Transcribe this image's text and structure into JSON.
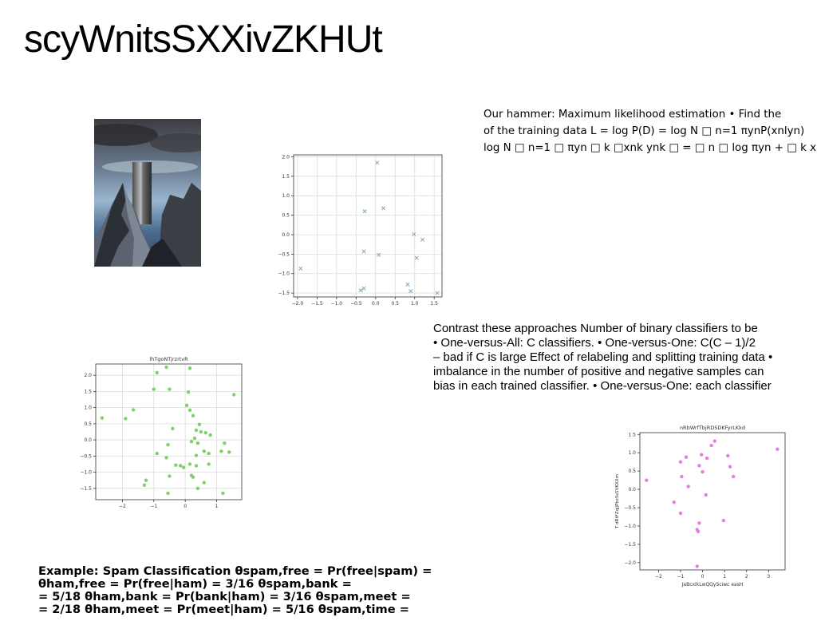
{
  "page": {
    "title": "scyWnitsSXXivZKHUt"
  },
  "text_blocks": {
    "hammer": [
      "Our hammer: Maximum likelihood estimation • Find the",
      "of the training data L = log P(D) = log N □ n=1 πynP(xnlyn)",
      "log N □ n=1 □ πyn □ k □xnk ynk □ = □ n □ log πyn + □ k xnk"
    ],
    "contrast": [
      "Contrast these approaches Number of binary classifiers to be",
      "• One-versus-All: C classifiers. • One-versus-One: C(C – 1)/2",
      "– bad if C is large Effect of relabeling and splitting training data •",
      "imbalance in the number of positive and negative samples can",
      "bias in each trained classifier. • One-versus-One: each classifier"
    ],
    "spam": [
      "Example: Spam Classification θspam,free = Pr(free|spam) =",
      "θham,free = Pr(free|ham) = 3/16 θspam,bank =",
      "= 5/18 θham,bank = Pr(bank|ham) = 3/16 θspam,meet =",
      "= 2/18 θham,meet = Pr(meet|ham) = 5/16 θspam,time ="
    ]
  },
  "chart_data": [
    {
      "type": "scatter",
      "title": "",
      "xlabel": "",
      "ylabel": "",
      "marker": "x",
      "color": "#7fa8b8",
      "xlim": [
        -2.1,
        1.7
      ],
      "ylim": [
        -1.6,
        2.05
      ],
      "xticks": [
        -2.0,
        -1.5,
        -1.0,
        -0.5,
        0.0,
        0.5,
        1.0,
        1.5
      ],
      "yticks": [
        -1.5,
        -1.0,
        -0.5,
        0.0,
        0.5,
        1.0,
        1.5,
        2.0
      ],
      "xtick_labels": [
        "−2.0",
        "−1.5",
        "−1.0",
        "−0.5",
        "0.0",
        "0.5",
        "1.0",
        "1.5"
      ],
      "ytick_labels": [
        "−1.5",
        "−1.0",
        "−0.5",
        "0.0",
        "0.5",
        "1.0",
        "1.5",
        "2.0"
      ],
      "grid": true,
      "points": [
        {
          "x": 0.04,
          "y": 1.85
        },
        {
          "x": -0.28,
          "y": 0.6
        },
        {
          "x": 0.2,
          "y": 0.68
        },
        {
          "x": -0.3,
          "y": -0.43
        },
        {
          "x": 0.08,
          "y": -0.52
        },
        {
          "x": 0.98,
          "y": 0.01
        },
        {
          "x": 1.2,
          "y": -0.13
        },
        {
          "x": 1.05,
          "y": -0.6
        },
        {
          "x": -1.92,
          "y": -0.87
        },
        {
          "x": 0.82,
          "y": -1.28
        },
        {
          "x": 0.9,
          "y": -1.45
        },
        {
          "x": -0.3,
          "y": -1.38
        },
        {
          "x": -0.38,
          "y": -1.43
        },
        {
          "x": 1.58,
          "y": -1.5
        }
      ]
    },
    {
      "type": "scatter",
      "title": "lhTgoNTjrzrtvR",
      "xlabel": "",
      "ylabel": "",
      "marker": "o",
      "color": "#7fcf6a",
      "xlim": [
        -2.85,
        1.8
      ],
      "ylim": [
        -1.85,
        2.35
      ],
      "xticks": [
        -2,
        -1,
        0,
        1
      ],
      "yticks": [
        -1.5,
        -1.0,
        -0.5,
        0.0,
        0.5,
        1.0,
        1.5,
        2.0
      ],
      "xtick_labels": [
        "−2",
        "−1",
        "0",
        "1"
      ],
      "ytick_labels": [
        "−1.5",
        "−1.0",
        "−0.5",
        "0.0",
        "0.5",
        "1.0",
        "1.5",
        "2.0"
      ],
      "grid": true,
      "points": [
        {
          "x": -0.6,
          "y": 2.25
        },
        {
          "x": 0.15,
          "y": 2.22
        },
        {
          "x": -0.9,
          "y": 2.08
        },
        {
          "x": -1.0,
          "y": 1.57
        },
        {
          "x": -0.5,
          "y": 1.57
        },
        {
          "x": 0.1,
          "y": 1.48
        },
        {
          "x": 1.55,
          "y": 1.4
        },
        {
          "x": 0.05,
          "y": 1.07
        },
        {
          "x": -1.65,
          "y": 0.93
        },
        {
          "x": 0.15,
          "y": 0.92
        },
        {
          "x": -2.65,
          "y": 0.68
        },
        {
          "x": -1.9,
          "y": 0.66
        },
        {
          "x": 0.25,
          "y": 0.75
        },
        {
          "x": 0.45,
          "y": 0.48
        },
        {
          "x": -0.4,
          "y": 0.35
        },
        {
          "x": 0.35,
          "y": 0.3
        },
        {
          "x": 0.5,
          "y": 0.25
        },
        {
          "x": 0.65,
          "y": 0.22
        },
        {
          "x": 0.8,
          "y": 0.15
        },
        {
          "x": -0.55,
          "y": -0.15
        },
        {
          "x": 0.3,
          "y": 0.05
        },
        {
          "x": 0.2,
          "y": -0.05
        },
        {
          "x": 0.4,
          "y": -0.1
        },
        {
          "x": 1.25,
          "y": -0.1
        },
        {
          "x": -0.9,
          "y": -0.42
        },
        {
          "x": -0.6,
          "y": -0.55
        },
        {
          "x": 0.35,
          "y": -0.48
        },
        {
          "x": 0.6,
          "y": -0.35
        },
        {
          "x": 0.75,
          "y": -0.42
        },
        {
          "x": 1.15,
          "y": -0.35
        },
        {
          "x": 1.4,
          "y": -0.38
        },
        {
          "x": -0.3,
          "y": -0.78
        },
        {
          "x": -0.15,
          "y": -0.8
        },
        {
          "x": -0.05,
          "y": -0.85
        },
        {
          "x": 0.15,
          "y": -0.75
        },
        {
          "x": 0.35,
          "y": -0.8
        },
        {
          "x": 0.75,
          "y": -0.75
        },
        {
          "x": -0.5,
          "y": -1.12
        },
        {
          "x": 0.2,
          "y": -1.1
        },
        {
          "x": 0.25,
          "y": -1.15
        },
        {
          "x": -1.25,
          "y": -1.25
        },
        {
          "x": -1.3,
          "y": -1.4
        },
        {
          "x": 0.6,
          "y": -1.32
        },
        {
          "x": 0.4,
          "y": -1.5
        },
        {
          "x": -0.55,
          "y": -1.65
        },
        {
          "x": 1.2,
          "y": -1.65
        }
      ]
    },
    {
      "type": "scatter",
      "title": "nRbWrfTbjRDSDKFyrLKkd",
      "xlabel": "JaBcxikLwQQySciwc easH",
      "ylabel": "T dRtFZqjjPbzSsSVKXXm",
      "marker": "o",
      "color": "#e27ee6",
      "xlim": [
        -2.85,
        3.75
      ],
      "ylim": [
        -2.2,
        1.55
      ],
      "xticks": [
        -2,
        -1,
        0,
        1,
        2,
        3
      ],
      "yticks": [
        -2.0,
        -1.5,
        -1.0,
        -0.5,
        0.0,
        0.5,
        1.0,
        1.5
      ],
      "xtick_labels": [
        "−2",
        "−1",
        "0",
        "1",
        "2",
        "3"
      ],
      "ytick_labels": [
        "−2.0",
        "−1.5",
        "−1.0",
        "−0.5",
        "0.0",
        "0.5",
        "1.0",
        "1.5"
      ],
      "grid": false,
      "points": [
        {
          "x": 0.55,
          "y": 1.32
        },
        {
          "x": 0.4,
          "y": 1.2
        },
        {
          "x": 3.4,
          "y": 1.1
        },
        {
          "x": -0.75,
          "y": 0.88
        },
        {
          "x": -1.0,
          "y": 0.75
        },
        {
          "x": -0.05,
          "y": 0.95
        },
        {
          "x": 0.2,
          "y": 0.85
        },
        {
          "x": 1.15,
          "y": 0.92
        },
        {
          "x": -0.15,
          "y": 0.65
        },
        {
          "x": 1.25,
          "y": 0.62
        },
        {
          "x": 0.0,
          "y": 0.48
        },
        {
          "x": -2.55,
          "y": 0.25
        },
        {
          "x": -0.95,
          "y": 0.35
        },
        {
          "x": 1.4,
          "y": 0.35
        },
        {
          "x": -0.65,
          "y": 0.08
        },
        {
          "x": 0.15,
          "y": -0.15
        },
        {
          "x": -1.3,
          "y": -0.35
        },
        {
          "x": -1.0,
          "y": -0.65
        },
        {
          "x": 0.95,
          "y": -0.85
        },
        {
          "x": -0.15,
          "y": -0.92
        },
        {
          "x": -0.25,
          "y": -1.1
        },
        {
          "x": -0.2,
          "y": -1.15
        },
        {
          "x": -0.25,
          "y": -2.1
        }
      ]
    }
  ]
}
